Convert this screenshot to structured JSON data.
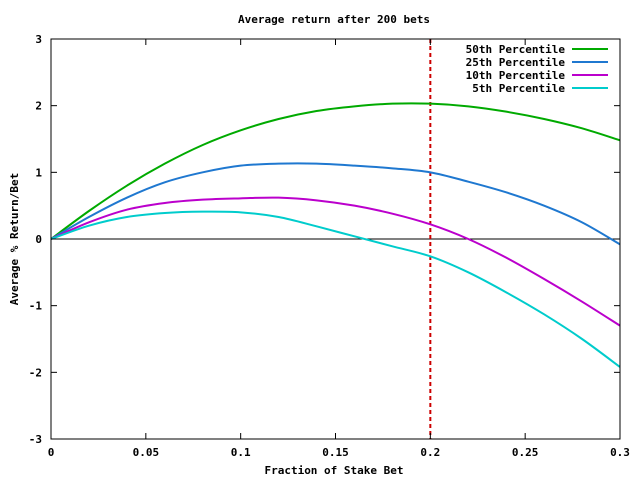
{
  "chart_data": {
    "type": "line",
    "title": "Average return after 200 bets",
    "xlabel": "Fraction of Stake Bet",
    "ylabel": "Average % Return/Bet",
    "xlim": [
      0,
      0.3
    ],
    "ylim": [
      -3,
      3
    ],
    "x_ticks": [
      {
        "value": 0,
        "label": "0"
      },
      {
        "value": 0.05,
        "label": "0.05"
      },
      {
        "value": 0.1,
        "label": "0.1"
      },
      {
        "value": 0.15,
        "label": "0.15"
      },
      {
        "value": 0.2,
        "label": "0.2"
      },
      {
        "value": 0.25,
        "label": "0.25"
      },
      {
        "value": 0.3,
        "label": "0.3"
      }
    ],
    "y_ticks": [
      {
        "value": -3,
        "label": "-3"
      },
      {
        "value": -2,
        "label": "-2"
      },
      {
        "value": -1,
        "label": "-1"
      },
      {
        "value": 0,
        "label": "0"
      },
      {
        "value": 1,
        "label": "1"
      },
      {
        "value": 2,
        "label": "2"
      },
      {
        "value": 3,
        "label": "3"
      }
    ],
    "grid": false,
    "legend_position": "top-right",
    "zero_line": {
      "y": 0,
      "color": "#000000"
    },
    "vertical_marker": {
      "x": 0.2,
      "color": "#cc0000",
      "style": "dashed"
    },
    "x": [
      0,
      0.02,
      0.04,
      0.06,
      0.08,
      0.1,
      0.12,
      0.14,
      0.16,
      0.18,
      0.2,
      0.22,
      0.24,
      0.26,
      0.28,
      0.3
    ],
    "series": [
      {
        "name": "50th Percentile",
        "color": "#00aa00",
        "values": [
          0,
          0.42,
          0.8,
          1.13,
          1.41,
          1.63,
          1.8,
          1.92,
          1.99,
          2.03,
          2.03,
          1.99,
          1.91,
          1.8,
          1.66,
          1.48
        ]
      },
      {
        "name": "25th Percentile",
        "color": "#1f78d0",
        "values": [
          0,
          0.33,
          0.62,
          0.85,
          1.0,
          1.1,
          1.13,
          1.13,
          1.1,
          1.06,
          1.0,
          0.86,
          0.7,
          0.5,
          0.25,
          -0.08
        ]
      },
      {
        "name": "10th Percentile",
        "color": "#bb00cc",
        "values": [
          0,
          0.25,
          0.44,
          0.54,
          0.59,
          0.61,
          0.62,
          0.58,
          0.5,
          0.38,
          0.22,
          0.0,
          -0.28,
          -0.6,
          -0.94,
          -1.3
        ]
      },
      {
        "name": "5th Percentile",
        "color": "#00cccc",
        "values": [
          0,
          0.2,
          0.33,
          0.39,
          0.41,
          0.4,
          0.33,
          0.19,
          0.04,
          -0.11,
          -0.26,
          -0.5,
          -0.8,
          -1.13,
          -1.5,
          -1.92
        ]
      }
    ]
  }
}
